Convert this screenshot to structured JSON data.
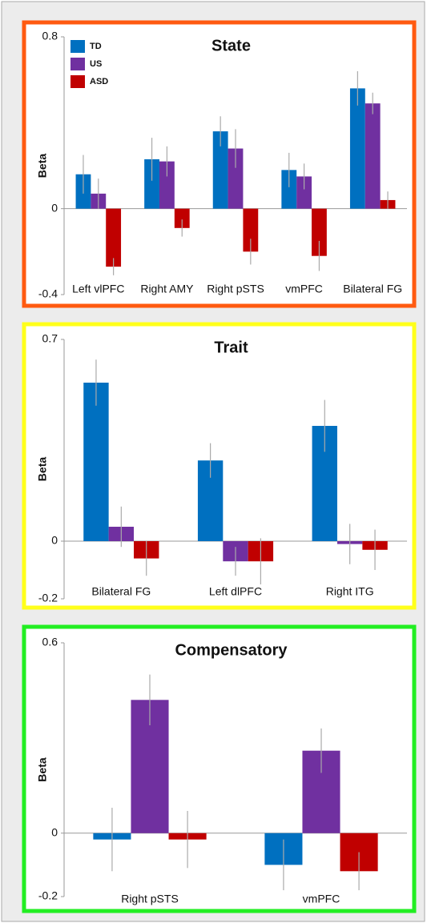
{
  "chart_data": [
    {
      "type": "bar",
      "title": "State",
      "y_label": "Beta",
      "border_color": "#ff5a10",
      "legend": true,
      "categories": [
        "Left vlPFC",
        "Right AMY",
        "Right pSTS",
        "vmPFC",
        "Bilateral FG"
      ],
      "series": [
        {
          "name": "TD",
          "color": "#0070c0",
          "values": [
            0.16,
            0.23,
            0.36,
            0.18,
            0.56
          ],
          "errors": [
            0.09,
            0.1,
            0.07,
            0.08,
            0.08
          ]
        },
        {
          "name": "US",
          "color": "#7030a0",
          "values": [
            0.07,
            0.22,
            0.28,
            0.15,
            0.49
          ],
          "errors": [
            0.07,
            0.07,
            0.09,
            0.06,
            0.05
          ]
        },
        {
          "name": "ASD",
          "color": "#c00000",
          "values": [
            -0.27,
            -0.09,
            -0.2,
            -0.22,
            0.04
          ],
          "errors": [
            0.04,
            0.04,
            0.06,
            0.07,
            0.04
          ]
        }
      ],
      "ylim": [
        -0.4,
        0.8
      ],
      "yticks": [
        -0.4,
        0,
        0.8
      ]
    },
    {
      "type": "bar",
      "title": "Trait",
      "y_label": "Beta",
      "border_color": "#ffff1a",
      "legend": false,
      "categories": [
        "Bilateral FG",
        "Left dlPFC",
        "Right ITG"
      ],
      "series": [
        {
          "color": "#0070c0",
          "values": [
            0.55,
            0.28,
            0.4
          ],
          "errors": [
            0.08,
            0.06,
            0.09
          ]
        },
        {
          "color": "#7030a0",
          "values": [
            0.05,
            -0.07,
            -0.01
          ],
          "errors": [
            0.07,
            0.05,
            0.07
          ]
        },
        {
          "color": "#c00000",
          "values": [
            -0.06,
            -0.07,
            -0.03
          ],
          "errors": [
            0.06,
            0.08,
            0.07
          ]
        }
      ],
      "ylim": [
        -0.2,
        0.7
      ],
      "yticks": [
        -0.2,
        0,
        0.7
      ]
    },
    {
      "type": "bar",
      "title": "Compensatory",
      "y_label": "Beta",
      "border_color": "#22ee22",
      "legend": false,
      "categories": [
        "Right pSTS",
        "vmPFC"
      ],
      "series": [
        {
          "color": "#0070c0",
          "values": [
            -0.02,
            -0.1
          ],
          "errors": [
            0.1,
            0.08
          ]
        },
        {
          "color": "#7030a0",
          "values": [
            0.42,
            0.26
          ],
          "errors": [
            0.08,
            0.07
          ]
        },
        {
          "color": "#c00000",
          "values": [
            -0.02,
            -0.12
          ],
          "errors": [
            0.09,
            0.06
          ]
        }
      ],
      "ylim": [
        -0.2,
        0.6
      ],
      "yticks": [
        -0.2,
        0,
        0.6
      ]
    }
  ]
}
